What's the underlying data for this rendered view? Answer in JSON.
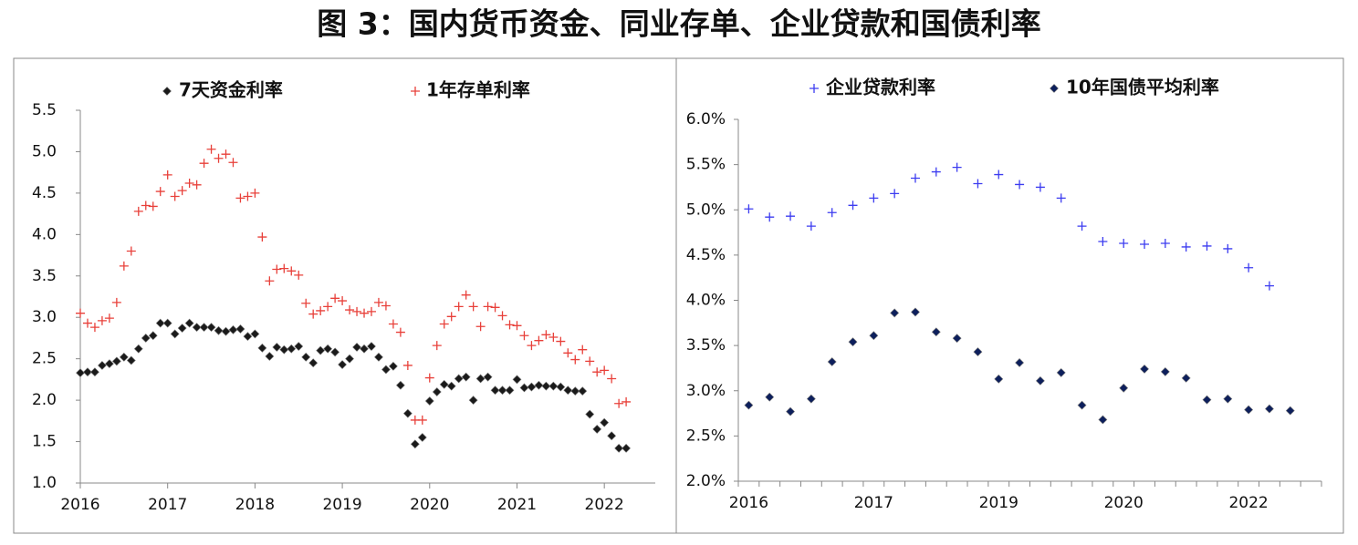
{
  "title": "图 3：国内货币资金、同业存单、企业贷款和国债利率",
  "chart_data": [
    {
      "type": "scatter",
      "legend": "top",
      "categories": [
        "2016",
        null,
        null,
        null,
        null,
        null,
        null,
        null,
        null,
        null,
        null,
        null,
        "2017",
        null,
        null,
        null,
        null,
        null,
        null,
        null,
        null,
        null,
        null,
        null,
        "2018",
        null,
        null,
        null,
        null,
        null,
        null,
        null,
        null,
        null,
        null,
        null,
        "2019",
        null,
        null,
        null,
        null,
        null,
        null,
        null,
        null,
        null,
        null,
        null,
        "2020",
        null,
        null,
        null,
        null,
        null,
        null,
        null,
        null,
        null,
        null,
        null,
        "2021",
        null,
        null,
        null,
        null,
        null,
        null,
        null,
        null,
        null,
        null,
        null,
        "2022",
        null,
        null,
        null
      ],
      "series": [
        {
          "name": "7天资金利率",
          "color": "#1a1a1a",
          "marker": "diamond",
          "values": [
            2.33,
            2.34,
            2.34,
            2.42,
            2.44,
            2.47,
            2.52,
            2.48,
            2.62,
            2.75,
            2.78,
            2.93,
            2.93,
            2.8,
            2.87,
            2.93,
            2.88,
            2.88,
            2.88,
            2.84,
            2.83,
            2.85,
            2.86,
            2.77,
            2.8,
            2.63,
            2.53,
            2.64,
            2.61,
            2.62,
            2.65,
            2.52,
            2.45,
            2.6,
            2.62,
            2.58,
            2.43,
            2.5,
            2.64,
            2.62,
            2.65,
            2.52,
            2.37,
            2.41,
            2.18,
            1.84,
            1.47,
            1.55,
            1.99,
            2.1,
            2.19,
            2.17,
            2.26,
            2.28,
            2.0,
            2.26,
            2.28,
            2.12,
            2.12,
            2.12,
            2.25,
            2.15,
            2.16,
            2.18,
            2.17,
            2.17,
            2.16,
            2.12,
            2.11,
            2.11,
            1.83,
            1.65,
            1.73,
            1.57,
            1.42,
            1.42
          ]
        },
        {
          "name": "1年存单利率",
          "color": "#e8403a",
          "marker": "plus",
          "values": [
            3.05,
            2.93,
            2.88,
            2.96,
            2.99,
            3.18,
            3.62,
            3.8,
            4.28,
            4.35,
            4.34,
            4.52,
            4.72,
            4.46,
            4.53,
            4.62,
            4.6,
            4.86,
            5.03,
            4.92,
            4.97,
            4.87,
            4.44,
            4.46,
            4.5,
            3.97,
            3.44,
            3.58,
            3.59,
            3.56,
            3.51,
            3.17,
            3.04,
            3.08,
            3.13,
            3.23,
            3.2,
            3.09,
            3.07,
            3.05,
            3.07,
            3.18,
            3.14,
            2.92,
            2.82,
            2.42,
            1.76,
            1.76,
            2.27,
            2.66,
            2.92,
            3.01,
            3.13,
            3.27,
            3.13,
            2.89,
            3.13,
            3.12,
            3.02,
            2.91,
            2.9,
            2.78,
            2.66,
            2.72,
            2.79,
            2.76,
            2.71,
            2.57,
            2.49,
            2.61,
            2.47,
            2.34,
            2.36,
            2.26,
            1.96,
            1.98
          ]
        }
      ],
      "ylim": [
        1,
        5.5
      ],
      "yticks": [
        {
          "value": 1,
          "label": "1.0"
        },
        1.5,
        {
          "value": 2,
          "label": "2.0"
        },
        2.5,
        {
          "value": 3,
          "label": "3.0"
        },
        3.5,
        {
          "value": 4,
          "label": "4.0"
        },
        4.5,
        {
          "value": 5,
          "label": "5.0"
        },
        5.5
      ]
    },
    {
      "type": "scatter",
      "legend": "top",
      "categories": [
        "2016",
        null,
        null,
        null,
        null,
        null,
        "2017",
        null,
        null,
        null,
        null,
        null,
        "2019",
        null,
        null,
        null,
        null,
        null,
        "2020",
        null,
        null,
        null,
        null,
        null,
        "2022",
        null,
        null
      ],
      "series": [
        {
          "name": "企业贷款利率",
          "color": "#3c3cf0",
          "marker": "plus",
          "values": [
            5.01,
            4.92,
            4.93,
            4.82,
            4.97,
            5.05,
            5.13,
            5.18,
            5.35,
            5.42,
            5.47,
            5.29,
            5.39,
            5.28,
            5.25,
            5.13,
            4.82,
            4.65,
            4.63,
            4.62,
            4.63,
            4.59,
            4.6,
            4.57,
            4.36,
            4.16,
            null
          ]
        },
        {
          "name": "10年国债平均利率",
          "color": "#0d1f5c",
          "marker": "diamond",
          "values": [
            2.84,
            2.93,
            2.77,
            2.91,
            3.32,
            3.54,
            3.61,
            3.86,
            3.87,
            3.65,
            3.58,
            3.43,
            3.13,
            3.31,
            3.11,
            3.2,
            2.84,
            2.68,
            3.03,
            3.24,
            3.21,
            3.14,
            2.9,
            2.91,
            2.79,
            2.8,
            2.78
          ]
        }
      ],
      "ylim": [
        2,
        6
      ],
      "yticks": [
        {
          "value": 2,
          "label": "2.0%"
        },
        {
          "value": 2.5,
          "label": "2.5%"
        },
        {
          "value": 3,
          "label": "3.0%"
        },
        {
          "value": 3.5,
          "label": "3.5%"
        },
        {
          "value": 4,
          "label": "4.0%"
        },
        {
          "value": 4.5,
          "label": "4.5%"
        },
        {
          "value": 5,
          "label": "5.0%"
        },
        {
          "value": 5.5,
          "label": "5.5%"
        },
        {
          "value": 6,
          "label": "6.0%"
        }
      ]
    }
  ]
}
